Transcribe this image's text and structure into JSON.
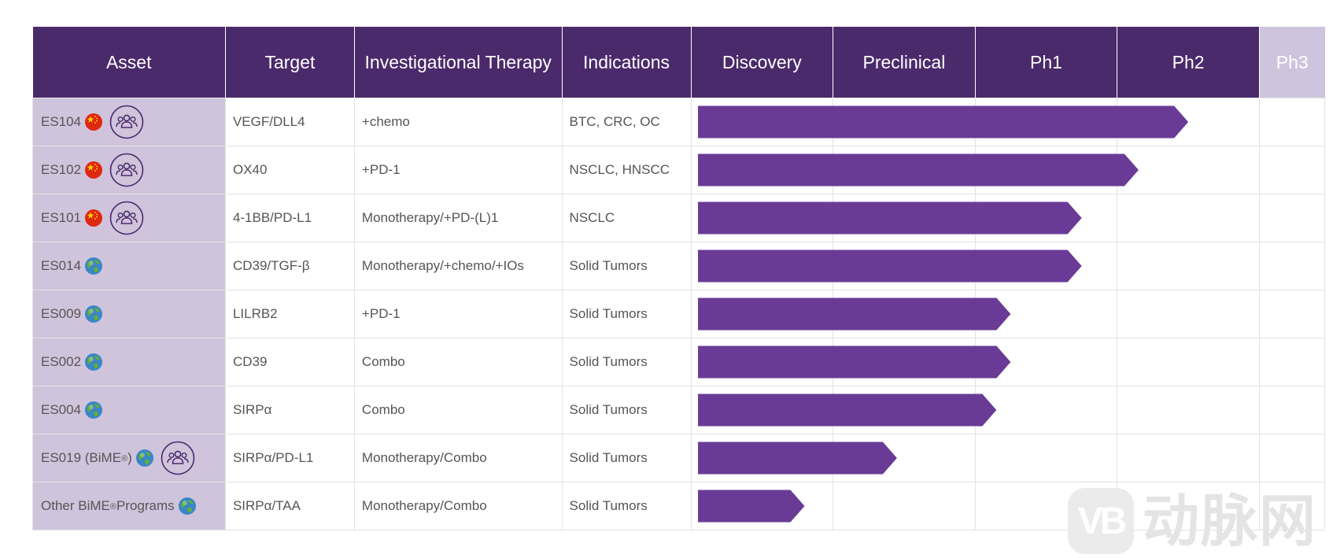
{
  "chart_data": {
    "type": "bar",
    "orientation": "horizontal",
    "title": "",
    "xlabel": "",
    "ylabel": "",
    "columns": [
      "Asset",
      "Target",
      "Investigational Therapy",
      "Indications"
    ],
    "phases": [
      "Discovery",
      "Preclinical",
      "Ph1",
      "Ph2",
      "Ph3"
    ],
    "xlim": [
      0,
      4.5
    ],
    "categories": [
      "ES104",
      "ES102",
      "ES101",
      "ES014",
      "ES009",
      "ES002",
      "ES004",
      "ES019 (BiME®)",
      "Other BiME® Programs"
    ],
    "rows": [
      {
        "asset": "ES104",
        "sup": "",
        "asset_suffix": "",
        "flag": "china-flag-icon",
        "partner": true,
        "target": "VEGF/DLL4",
        "therapy": "+chemo",
        "indications": "BTC, CRC, OC",
        "progress": 3.5
      },
      {
        "asset": "ES102",
        "sup": "",
        "asset_suffix": "",
        "flag": "china-flag-icon",
        "partner": true,
        "target": "OX40",
        "therapy": "+PD-1",
        "indications": "NSCLC, HNSCC",
        "progress": 3.15
      },
      {
        "asset": "ES101",
        "sup": "",
        "asset_suffix": "",
        "flag": "china-flag-icon",
        "partner": true,
        "target": "4-1BB/PD-L1",
        "therapy": "Monotherapy/+PD-(L)1",
        "indications": "NSCLC",
        "progress": 2.75
      },
      {
        "asset": "ES014",
        "sup": "",
        "asset_suffix": "",
        "flag": "globe-icon",
        "partner": false,
        "target": "CD39/TGF-β",
        "therapy": "Monotherapy/+chemo/+IOs",
        "indications": "Solid Tumors",
        "progress": 2.75
      },
      {
        "asset": "ES009",
        "sup": "",
        "asset_suffix": "",
        "flag": "globe-icon",
        "partner": false,
        "target": "LILRB2",
        "therapy": "+PD-1",
        "indications": "Solid Tumors",
        "progress": 2.25
      },
      {
        "asset": "ES002",
        "sup": "",
        "asset_suffix": "",
        "flag": "globe-icon",
        "partner": false,
        "target": "CD39",
        "therapy": "Combo",
        "indications": "Solid Tumors",
        "progress": 2.25
      },
      {
        "asset": "ES004",
        "sup": "",
        "asset_suffix": "",
        "flag": "globe-icon",
        "partner": false,
        "target": "SIRPα",
        "therapy": "Combo",
        "indications": "Solid Tumors",
        "progress": 2.15
      },
      {
        "asset": "ES019 (BiME",
        "sup": "®",
        "asset_suffix": ")",
        "flag": "globe-icon",
        "partner": true,
        "target": "SIRPα/PD-L1",
        "therapy": "Monotherapy/Combo",
        "indications": "Solid Tumors",
        "progress": 1.45
      },
      {
        "asset": "Other BiME",
        "sup": "®",
        "asset_suffix": " Programs",
        "flag": "globe-icon",
        "partner": false,
        "target": "SIRPα/TAA",
        "therapy": "Monotherapy/Combo",
        "indications": "Solid Tumors",
        "progress": 0.8
      }
    ],
    "colors": {
      "header": "#4b2a6b",
      "header_inactive": "#cec4dd",
      "asset_column": "#cfc4dc",
      "bar": "#6a3b96",
      "grid": "#e3e3e3"
    }
  },
  "watermark": {
    "logo_text": "VB",
    "text": "动脉网"
  }
}
